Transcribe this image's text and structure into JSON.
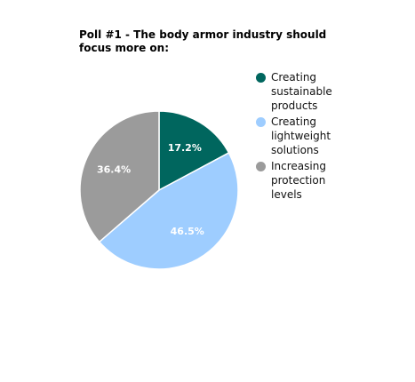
{
  "chart_data": {
    "type": "pie",
    "title": "Poll #1 - The body armor industry should focus more on:",
    "slices": [
      {
        "label": "Creating sustainable products",
        "value": 17.2,
        "display": "17.2%",
        "color": "#00665e"
      },
      {
        "label": "Creating lightweight solutions",
        "value": 46.5,
        "display": "46.5%",
        "color": "#9ecdff"
      },
      {
        "label": "Increasing protection levels",
        "value": 36.4,
        "display": "36.4%",
        "color": "#9b9b9b"
      }
    ],
    "start_angle_deg": 0,
    "direction": "clockwise",
    "legend_position": "right"
  }
}
